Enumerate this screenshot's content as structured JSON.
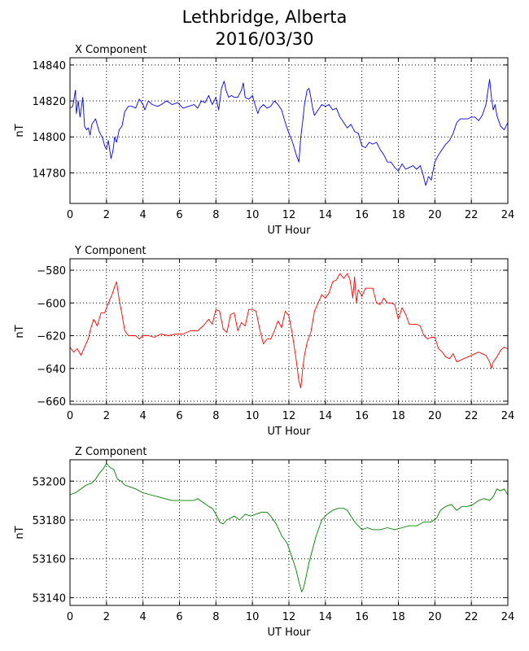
{
  "title_line1": "Lethbridge, Alberta",
  "title_line2": "2016/03/30",
  "chart_data": [
    {
      "type": "line",
      "title": "X Component",
      "xlabel": "UT Hour",
      "ylabel": "nT",
      "xlim": [
        0,
        24
      ],
      "ylim": [
        14763,
        14844
      ],
      "xticks": [
        0,
        2,
        4,
        6,
        8,
        10,
        12,
        14,
        16,
        18,
        20,
        22,
        24
      ],
      "yticks": [
        14780,
        14800,
        14820,
        14840
      ],
      "grid": true,
      "color": "#0000ff",
      "series": [
        {
          "x": [
            0,
            0.15,
            0.3,
            0.35,
            0.45,
            0.55,
            0.7,
            0.8,
            0.9,
            1.0,
            1.1,
            1.2,
            1.4,
            1.6,
            1.8,
            1.9,
            2.0,
            2.1,
            2.25,
            2.35,
            2.45,
            2.55,
            2.7,
            2.85,
            3.0,
            3.2,
            3.4,
            3.6,
            3.8,
            4.0,
            4.1,
            4.3,
            4.5,
            4.8,
            5.0,
            5.3,
            5.6,
            5.9,
            6.2,
            6.5,
            6.8,
            7.0,
            7.2,
            7.4,
            7.6,
            7.8,
            8.0,
            8.15,
            8.3,
            8.45,
            8.55,
            8.7,
            8.85,
            9.0,
            9.2,
            9.4,
            9.5,
            9.6,
            9.8,
            10.0,
            10.2,
            10.3,
            10.4,
            10.6,
            10.8,
            11.0,
            11.2,
            11.4,
            11.6,
            11.8,
            12.0,
            12.2,
            12.4,
            12.55,
            12.65,
            12.75,
            12.85,
            13.0,
            13.1,
            13.2,
            13.3,
            13.4,
            13.6,
            13.8,
            14.0,
            14.2,
            14.4,
            14.6,
            14.8,
            15.0,
            15.2,
            15.4,
            15.6,
            15.8,
            16.0,
            16.2,
            16.4,
            16.6,
            16.8,
            17.0,
            17.2,
            17.4,
            17.6,
            17.8,
            18.0,
            18.2,
            18.4,
            18.6,
            18.8,
            19.0,
            19.2,
            19.35,
            19.5,
            19.65,
            19.8,
            20.0,
            20.2,
            20.4,
            20.6,
            20.8,
            21.0,
            21.2,
            21.4,
            21.6,
            21.8,
            22.0,
            22.2,
            22.4,
            22.6,
            22.8,
            22.9,
            23.0,
            23.1,
            23.2,
            23.3,
            23.4,
            23.6,
            23.8,
            24.0
          ],
          "y": [
            14816,
            14817,
            14826,
            14813,
            14820,
            14811,
            14822,
            14806,
            14804,
            14805,
            14801,
            14807,
            14810,
            14803,
            14799,
            14795,
            14793,
            14798,
            14788,
            14792,
            14800,
            14797,
            14804,
            14806,
            14814,
            14817,
            14817,
            14816,
            14821,
            14818,
            14815,
            14820,
            14818,
            14817,
            14818,
            14820,
            14818,
            14819,
            14816,
            14817,
            14818,
            14816,
            14820,
            14819,
            14823,
            14818,
            14822,
            14815,
            14827,
            14831,
            14826,
            14822,
            14823,
            14822,
            14822,
            14826,
            14830,
            14822,
            14821,
            14823,
            14816,
            14813,
            14816,
            14818,
            14816,
            14817,
            14820,
            14818,
            14815,
            14808,
            14802,
            14797,
            14790,
            14786,
            14800,
            14808,
            14818,
            14826,
            14827,
            14822,
            14816,
            14812,
            14815,
            14818,
            14817,
            14818,
            14815,
            14816,
            14811,
            14808,
            14805,
            14807,
            14803,
            14802,
            14795,
            14794,
            14797,
            14796,
            14797,
            14793,
            14790,
            14786,
            14786,
            14783,
            14781,
            14785,
            14782,
            14783,
            14784,
            14782,
            14784,
            14779,
            14773,
            14778,
            14776,
            14786,
            14790,
            14793,
            14796,
            14798,
            14802,
            14808,
            14810,
            14810,
            14810,
            14811,
            14811,
            14809,
            14812,
            14818,
            14825,
            14832,
            14822,
            14815,
            14818,
            14812,
            14806,
            14804,
            14808
          ]
        }
      ]
    },
    {
      "type": "line",
      "title": "Y Component",
      "xlabel": "UT Hour",
      "ylabel": "nT",
      "xlim": [
        0,
        24
      ],
      "ylim": [
        -662,
        -573
      ],
      "xticks": [
        0,
        2,
        4,
        6,
        8,
        10,
        12,
        14,
        16,
        18,
        20,
        22,
        24
      ],
      "yticks": [
        -580,
        -600,
        -620,
        -640,
        -660
      ],
      "grid": true,
      "color": "#ff0000",
      "series": [
        {
          "x": [
            0,
            0.2,
            0.4,
            0.6,
            0.8,
            1.0,
            1.1,
            1.3,
            1.5,
            1.7,
            1.9,
            2.1,
            2.3,
            2.45,
            2.55,
            2.7,
            2.85,
            3.0,
            3.2,
            3.4,
            3.6,
            3.8,
            4.0,
            4.3,
            4.6,
            5.0,
            5.4,
            5.8,
            6.2,
            6.6,
            7.0,
            7.3,
            7.6,
            7.8,
            8.0,
            8.2,
            8.4,
            8.6,
            8.8,
            9.0,
            9.2,
            9.4,
            9.6,
            9.8,
            10.0,
            10.2,
            10.4,
            10.6,
            10.8,
            11.0,
            11.2,
            11.4,
            11.6,
            11.8,
            12.0,
            12.2,
            12.4,
            12.55,
            12.65,
            12.75,
            12.85,
            13.0,
            13.2,
            13.4,
            13.6,
            13.8,
            14.0,
            14.2,
            14.4,
            14.6,
            14.8,
            15.0,
            15.2,
            15.35,
            15.5,
            15.6,
            15.7,
            15.8,
            16.0,
            16.2,
            16.4,
            16.6,
            16.8,
            17.0,
            17.2,
            17.4,
            17.6,
            17.8,
            18.0,
            18.2,
            18.4,
            18.6,
            18.8,
            19.0,
            19.2,
            19.4,
            19.6,
            19.8,
            20.0,
            20.2,
            20.4,
            20.6,
            20.8,
            21.0,
            21.2,
            21.4,
            21.6,
            21.8,
            22.0,
            22.2,
            22.4,
            22.6,
            22.8,
            23.0,
            23.1,
            23.2,
            23.4,
            23.6,
            23.8,
            24.0
          ],
          "y": [
            -627,
            -630,
            -628,
            -632,
            -627,
            -622,
            -617,
            -610,
            -614,
            -606,
            -606,
            -600,
            -595,
            -590,
            -587,
            -598,
            -607,
            -617,
            -620,
            -620,
            -620,
            -622,
            -620,
            -620,
            -621,
            -619,
            -620,
            -619,
            -619,
            -617,
            -617,
            -614,
            -610,
            -613,
            -604,
            -605,
            -616,
            -618,
            -607,
            -606,
            -617,
            -612,
            -614,
            -604,
            -604,
            -605,
            -616,
            -625,
            -622,
            -622,
            -617,
            -611,
            -615,
            -605,
            -608,
            -620,
            -635,
            -648,
            -652,
            -641,
            -632,
            -624,
            -618,
            -605,
            -600,
            -595,
            -597,
            -594,
            -587,
            -586,
            -582,
            -585,
            -582,
            -586,
            -597,
            -584,
            -600,
            -592,
            -596,
            -591,
            -591,
            -591,
            -600,
            -601,
            -597,
            -600,
            -600,
            -601,
            -610,
            -603,
            -607,
            -613,
            -613,
            -613,
            -614,
            -620,
            -622,
            -621,
            -621,
            -628,
            -630,
            -633,
            -634,
            -631,
            -636,
            -635,
            -634,
            -633,
            -632,
            -631,
            -630,
            -631,
            -632,
            -636,
            -640,
            -636,
            -633,
            -629,
            -627,
            -628
          ]
        }
      ]
    },
    {
      "type": "line",
      "title": "Z Component",
      "xlabel": "UT Hour",
      "ylabel": "nT",
      "xlim": [
        0,
        24
      ],
      "ylim": [
        53136,
        53211
      ],
      "xticks": [
        0,
        2,
        4,
        6,
        8,
        10,
        12,
        14,
        16,
        18,
        20,
        22,
        24
      ],
      "yticks": [
        53140,
        53160,
        53180,
        53200
      ],
      "grid": true,
      "color": "#008000",
      "series": [
        {
          "x": [
            0,
            0.3,
            0.6,
            0.9,
            1.2,
            1.4,
            1.6,
            1.8,
            2.0,
            2.2,
            2.4,
            2.6,
            2.8,
            3.0,
            3.3,
            3.6,
            4.0,
            4.4,
            4.8,
            5.2,
            5.6,
            6.0,
            6.4,
            6.8,
            7.0,
            7.3,
            7.6,
            7.8,
            8.0,
            8.2,
            8.4,
            8.6,
            8.8,
            9.0,
            9.3,
            9.6,
            9.9,
            10.2,
            10.5,
            10.8,
            11.0,
            11.3,
            11.6,
            11.9,
            12.2,
            12.4,
            12.55,
            12.7,
            12.8,
            12.9,
            13.1,
            13.3,
            13.5,
            13.8,
            14.1,
            14.4,
            14.7,
            15.0,
            15.2,
            15.4,
            15.6,
            15.8,
            16.0,
            16.3,
            16.6,
            17.0,
            17.4,
            17.8,
            18.2,
            18.6,
            19.0,
            19.4,
            19.8,
            20.1,
            20.3,
            20.6,
            20.9,
            21.2,
            21.5,
            21.8,
            22.1,
            22.4,
            22.7,
            23.0,
            23.2,
            23.4,
            23.6,
            23.8,
            24.0
          ],
          "y": [
            53193,
            53194,
            53196,
            53198,
            53199,
            53201,
            53204,
            53206,
            53209,
            53207,
            53206,
            53201,
            53200,
            53198,
            53197,
            53196,
            53194,
            53193,
            53192,
            53191,
            53190,
            53190,
            53190,
            53190,
            53191,
            53189,
            53187,
            53186,
            53183,
            53179,
            53178,
            53180,
            53181,
            53182,
            53180,
            53183,
            53182,
            53183,
            53184,
            53184,
            53182,
            53178,
            53172,
            53168,
            53160,
            53154,
            53148,
            53143,
            53145,
            53149,
            53158,
            53165,
            53172,
            53180,
            53183,
            53185,
            53186,
            53186,
            53185,
            53182,
            53179,
            53177,
            53175,
            53176,
            53175,
            53175,
            53176,
            53175,
            53176,
            53177,
            53177,
            53179,
            53179,
            53181,
            53185,
            53187,
            53188,
            53185,
            53187,
            53187,
            53188,
            53190,
            53191,
            53190,
            53192,
            53196,
            53195,
            53196,
            53193
          ]
        }
      ]
    }
  ]
}
